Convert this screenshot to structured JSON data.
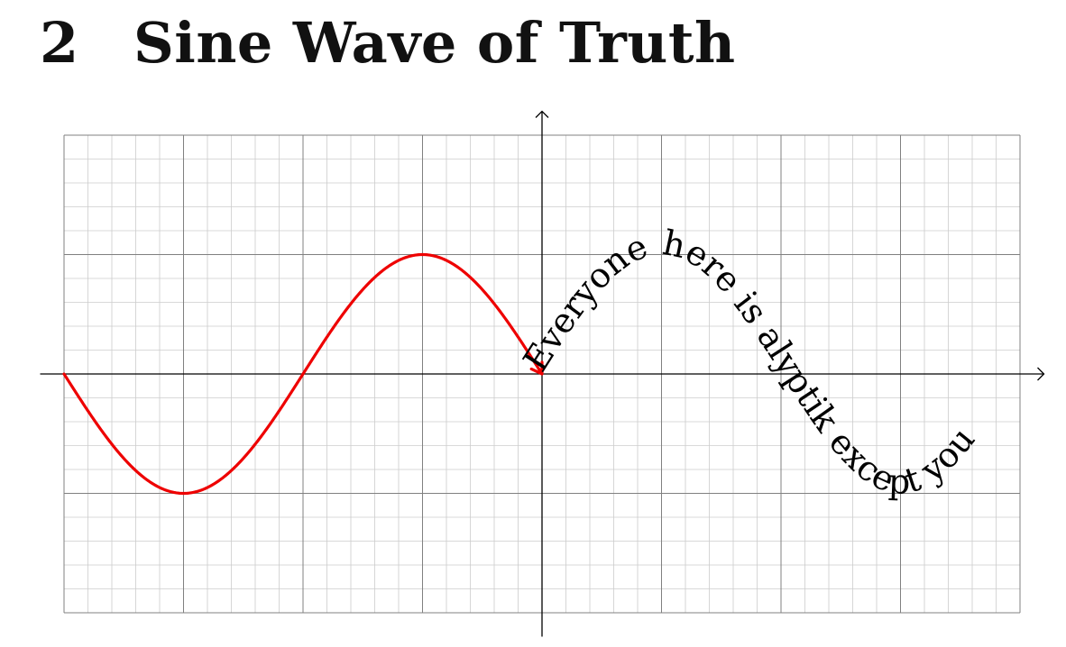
{
  "heading": {
    "number": "2",
    "title": "Sine Wave of Truth"
  },
  "figure": {
    "grid": {
      "x_range": [
        -4,
        4
      ],
      "y_range": [
        -2,
        2
      ],
      "major_step": 1,
      "minor_step": 0.2
    },
    "axes": {
      "x_extent": [
        -4.2,
        4.2
      ],
      "y_extent": [
        -2.2,
        2.2
      ],
      "arrow_heads": true
    },
    "sine_curve": {
      "function": "y = -sin(pi*x/2)",
      "domain": [
        -4,
        0
      ],
      "color": "#ee0000",
      "end_arrow": true
    },
    "text_path": {
      "function": "y = sin(pi*x/2)",
      "domain": [
        0,
        4
      ],
      "text": "Everyone here is alyptik except you"
    },
    "colors": {
      "minor_grid": "#cccccc",
      "major_grid": "#808080",
      "axis": "#000000"
    }
  }
}
